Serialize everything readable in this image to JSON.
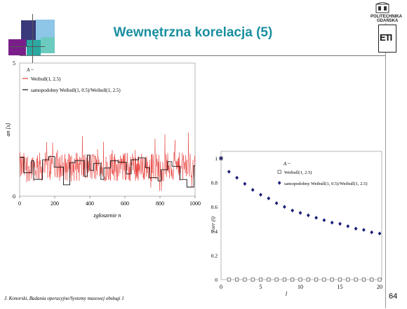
{
  "slide": {
    "title": "Wewnętrzna korelacja (5)",
    "footer": "J. Konorski, Badania operacyjne/Systemy masowej obsługi 1",
    "page_number": "64",
    "logo_line1": "POLITECHNIKA",
    "logo_line2": "GDAŃSKA",
    "logo_mark": "ETI",
    "colors": {
      "title": "#1a8fa0",
      "red_series": "#e8403c",
      "black_series": "#111111",
      "marker_navy": "#1c1c78"
    }
  },
  "chart_data": [
    {
      "type": "line",
      "legend_title": "A ~",
      "xlabel": "zgłoszenie n",
      "ylabel": "an [s]",
      "xlim": [
        0,
        1000
      ],
      "ylim": [
        0,
        5
      ],
      "x_ticks": [
        0,
        200,
        400,
        600,
        800,
        1000
      ],
      "y_ticks": [
        0,
        5
      ],
      "legend_placement": "top-left",
      "grid": false,
      "series": [
        {
          "name": "Weibull(1, 2.5)",
          "color": "#e8403c",
          "note_values": "~1000 noisy samples around mean ~1.1, spikes up to ~2.3"
        },
        {
          "name": "samopodobny Weibull(1, 0.5)/Weibull(1, 2.5)",
          "color": "#111111",
          "note_values": "step function with levels between ~0.3 and ~1.7"
        }
      ]
    },
    {
      "type": "scatter",
      "legend_title": "A ~",
      "xlabel": "l",
      "ylabel": "corr (l)",
      "xlim": [
        0,
        20
      ],
      "ylim": [
        0,
        1
      ],
      "x_ticks": [
        0,
        5,
        10,
        15,
        20
      ],
      "y_ticks": [
        0,
        0.2,
        0.4,
        0.6,
        0.8,
        1
      ],
      "legend_placement": "top-right",
      "grid": false,
      "x": [
        0,
        1,
        2,
        3,
        4,
        5,
        6,
        7,
        8,
        9,
        10,
        11,
        12,
        13,
        14,
        15,
        16,
        17,
        18,
        19,
        20
      ],
      "series": [
        {
          "name": "Weibull(1, 2.5)",
          "marker": "open-square",
          "values": [
            1,
            0,
            0,
            0,
            0,
            0,
            0,
            0,
            0,
            0,
            0,
            0,
            0,
            0,
            0,
            0,
            0,
            0,
            0,
            0,
            0
          ]
        },
        {
          "name": "samopodobny Weibull(1, 0.5)/Weibull(1, 2.5)",
          "marker": "filled-diamond",
          "values": [
            1,
            0.89,
            0.84,
            0.79,
            0.74,
            0.7,
            0.67,
            0.63,
            0.6,
            0.57,
            0.55,
            0.53,
            0.51,
            0.49,
            0.47,
            0.46,
            0.44,
            0.42,
            0.41,
            0.39,
            0.38
          ]
        }
      ]
    }
  ]
}
